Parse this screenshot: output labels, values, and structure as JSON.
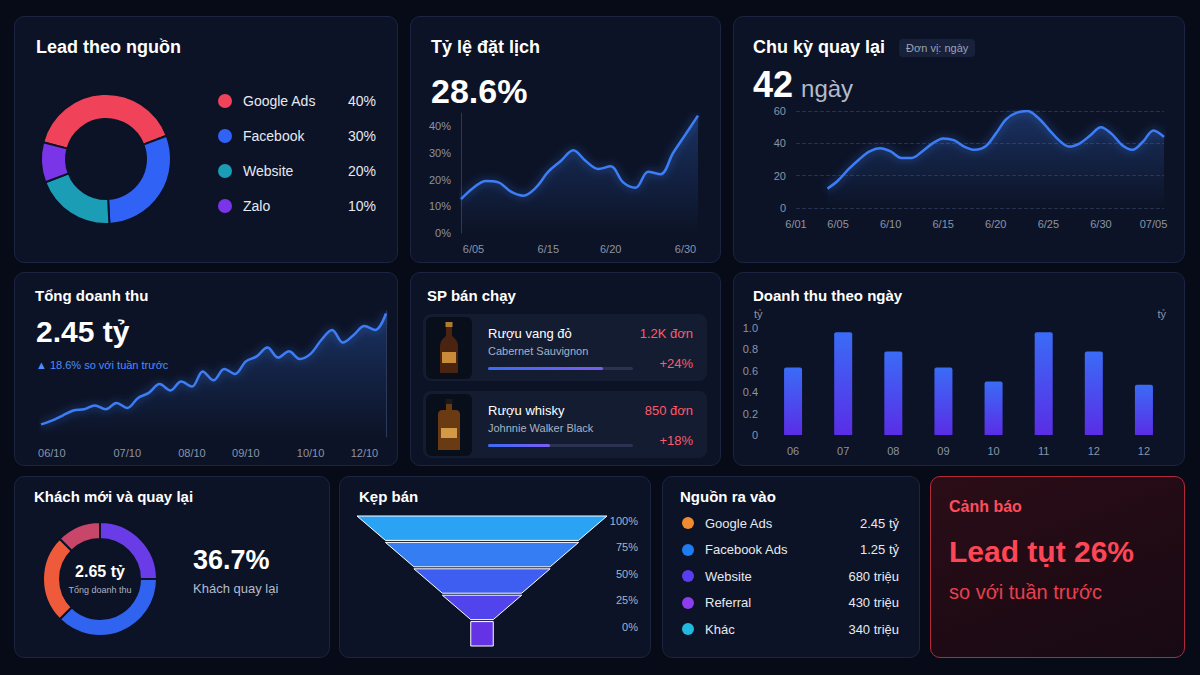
{
  "chart_data": [
    {
      "type": "pie",
      "title": "Lead theo nguồn",
      "categories": [
        "Google Ads",
        "Facebook",
        "Website",
        "Zalo"
      ],
      "values": [
        40,
        30,
        20,
        10
      ],
      "value_labels": [
        "40%",
        "30%",
        "20%",
        "10%"
      ],
      "colors": [
        "#f0435a",
        "#2f62f5",
        "#1b9db5",
        "#7a35e8"
      ],
      "legend": "right"
    },
    {
      "type": "line",
      "title": "Tỷ lệ đặt lịch",
      "headline": "28.6%",
      "categories": [
        null,
        "6/05",
        null,
        null,
        null,
        null,
        null,
        "6/15",
        null,
        null,
        null,
        null,
        "6/20",
        null,
        null,
        null,
        null,
        null,
        "6/30",
        null
      ],
      "values": [
        12.7,
        17,
        19.5,
        19,
        15.5,
        14,
        17,
        23,
        27,
        31,
        27,
        24,
        25,
        19,
        17,
        23,
        22,
        30,
        37,
        44
      ],
      "color": "#3d7df5",
      "ylim": [
        0,
        45
      ],
      "yticks": [
        {
          "value": 0,
          "label": "0%"
        },
        {
          "value": 10,
          "label": "10%"
        },
        {
          "value": 20,
          "label": "20%"
        },
        {
          "value": 30,
          "label": "30%"
        },
        {
          "value": 40,
          "label": "40%"
        }
      ],
      "grid": false
    },
    {
      "type": "line",
      "title": "Chu kỳ quay lại",
      "unit_note": "Đơn vị: ngày",
      "headline": "42",
      "headline_unit": "ngày",
      "categories": [
        "6/01",
        null,
        null,
        null,
        "6/05",
        null,
        null,
        null,
        null,
        "6/10",
        null,
        null,
        null,
        null,
        "6/15",
        null,
        null,
        null,
        null,
        "6/20",
        null,
        null,
        null,
        null,
        "6/25",
        null,
        null,
        null,
        null,
        "6/30",
        null,
        null,
        null,
        null,
        "07/05",
        null
      ],
      "values": [
        null,
        null,
        null,
        12,
        17,
        24,
        30,
        35,
        37,
        35,
        31,
        31,
        35,
        40,
        43,
        42,
        38,
        36,
        38,
        46,
        55,
        59,
        60,
        56,
        49,
        42,
        38,
        40,
        45,
        50,
        46,
        39,
        36,
        41,
        48,
        44
      ],
      "color": "#3d7df5",
      "ylim": [
        0,
        60
      ],
      "yticks": [
        0,
        20,
        40,
        60
      ],
      "grid": true
    },
    {
      "type": "line",
      "title": "Tổng doanh thu",
      "headline": "2.45 tỷ",
      "change": "▲ 18.6% so với tuần trước",
      "categories": [
        null,
        "06/10",
        null,
        null,
        null,
        null,
        null,
        null,
        "07/10",
        null,
        null,
        null,
        null,
        null,
        "08/10",
        null,
        null,
        null,
        null,
        "09/10",
        null,
        null,
        null,
        null,
        null,
        "10/10",
        null,
        null,
        null,
        null,
        "12/10",
        null,
        null
      ],
      "values": [
        10,
        13,
        17,
        21,
        22,
        25,
        22,
        27,
        23,
        31,
        35,
        42,
        37,
        44,
        40,
        52,
        45,
        54,
        50,
        60,
        64,
        71,
        63,
        68,
        62,
        66,
        77,
        85,
        75,
        81,
        88,
        85,
        98
      ],
      "color": "#3d7df5",
      "ylim": [
        0,
        100
      ],
      "yticks": [],
      "tick_labels": "x",
      "grid": false
    },
    {
      "type": "list",
      "title": "SP bán chạy",
      "items": [
        {
          "name": "Rượu vang đỏ",
          "detail": "Cabernet Sauvignon",
          "orders": "1.2K đơn",
          "growth": "+24%",
          "progress": 79
        },
        {
          "name": "Rượu whisky",
          "detail": "Johnnie Walker Black",
          "orders": "850 đơn",
          "growth": "+18%",
          "progress": 43
        }
      ]
    },
    {
      "type": "bar",
      "title": "Doanh thu theo ngày",
      "ylabel": "tỷ",
      "ylabel_right": "tỷ",
      "categories": [
        "06",
        "07",
        "08",
        "09",
        "10",
        "11",
        "12",
        "12"
      ],
      "values": [
        0.63,
        0.96,
        0.78,
        0.63,
        0.5,
        0.96,
        0.78,
        0.47
      ],
      "color": "#3a6cf6",
      "ylim": [
        0,
        1
      ],
      "yticks": [
        0,
        0.2,
        0.4,
        0.6,
        0.8,
        {
          "value": 1,
          "label": "1.0"
        }
      ],
      "grid": false
    },
    {
      "type": "pie",
      "title": "Khách mới và quay lại",
      "center_value": "2.65 tỷ",
      "center_label": "Tổng doanh thu",
      "headline": "36.7%",
      "headline_label": "Khách quay lại",
      "values": [
        25,
        37.5,
        25,
        12.5
      ],
      "colors": [
        "#6a3ce8",
        "#2f63f0",
        "#ef5a3a",
        "#c8466a"
      ]
    },
    {
      "type": "funnel",
      "title": "Kẹp bán",
      "values": [
        100,
        75,
        50,
        25,
        0
      ],
      "value_labels": [
        "100%",
        "75%",
        "50%",
        "25%",
        "0%"
      ],
      "colors": [
        "#2aa3f5",
        "#347df2",
        "#3d5ef0",
        "#5244ec",
        "#6533e6"
      ],
      "data_labels": true
    },
    {
      "type": "table",
      "title": "Nguồn ra vào",
      "rows": [
        [
          "Google Ads",
          "2.45 tỷ"
        ],
        [
          "Facebook Ads",
          "1.25 tỷ"
        ],
        [
          "Website",
          "680 triệu"
        ],
        [
          "Referral",
          "430 triệu"
        ],
        [
          "Khác",
          "340 triệu"
        ]
      ],
      "colors": [
        "#f28a2e",
        "#1e7cf2",
        "#5a3df0",
        "#8e3cf0",
        "#22b9e0"
      ]
    },
    {
      "type": "alert",
      "title": "Cảnh báo",
      "headline": "Lead tụt 26%",
      "subtitle": "so với tuần trước"
    }
  ]
}
